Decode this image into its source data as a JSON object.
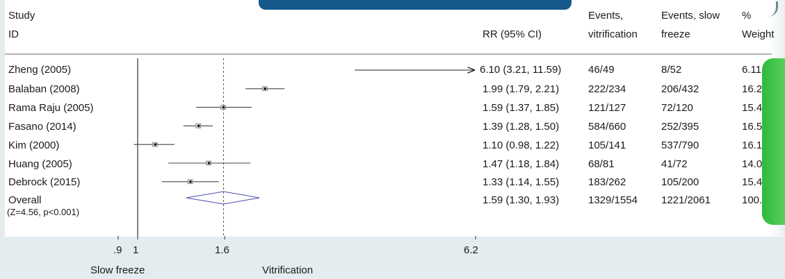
{
  "headers": {
    "study_line1": "Study",
    "study_line2": "ID",
    "rr": "RR (95% CI)",
    "ev_vit_line1": "Events,",
    "ev_vit_line2": "vitrification",
    "ev_slow_line1": "Events, slow",
    "ev_slow_line2": "freeze",
    "weight_line1": "%",
    "weight_line2": "Weight"
  },
  "studies": [
    {
      "id": "Zheng (2005)",
      "ci_text": "6.10 (3.21, 11.59)",
      "events_vit": "46/49",
      "events_slow": "8/52",
      "weight": "6.11"
    },
    {
      "id": "Balaban (2008)",
      "ci_text": "1.99 (1.79, 2.21)",
      "events_vit": "222/234",
      "events_slow": "206/432",
      "weight": "16.2"
    },
    {
      "id": "Rama Raju (2005)",
      "ci_text": "1.59 (1.37, 1.85)",
      "events_vit": "121/127",
      "events_slow": "72/120",
      "weight": "15.4"
    },
    {
      "id": "Fasano (2014)",
      "ci_text": "1.39 (1.28, 1.50)",
      "events_vit": "584/660",
      "events_slow": "252/395",
      "weight": "16.5"
    },
    {
      "id": "Kim (2000)",
      "ci_text": "1.10 (0.98, 1.22)",
      "events_vit": "105/141",
      "events_slow": "537/790",
      "weight": "16.1"
    },
    {
      "id": "Huang (2005)",
      "ci_text": "1.47 (1.18, 1.84)",
      "events_vit": "68/81",
      "events_slow": "41/72",
      "weight": "14.0"
    },
    {
      "id": "Debrock (2015)",
      "ci_text": "1.33 (1.14, 1.55)",
      "events_vit": "183/262",
      "events_slow": "105/200",
      "weight": "15.4"
    }
  ],
  "overall": {
    "id": "Overall",
    "stats": "(Z=4.56, p<0.001)",
    "ci_text": "1.59 (1.30, 1.93)",
    "events_vit": "1329/1554",
    "events_slow": "1221/2061",
    "weight": "100."
  },
  "axis": {
    "tick_labels": [
      ".9",
      "1",
      "1.6",
      "6.2"
    ],
    "left_label": "Slow freeze",
    "right_label": "Vitrification"
  },
  "chart_data": {
    "type": "forest",
    "scale": "log",
    "xlim": [
      0.9,
      6.2
    ],
    "ticks": [
      0.9,
      1,
      1.6,
      6.2
    ],
    "null_line": 1,
    "pooled_line": 1.59,
    "categories": [
      "Zheng (2005)",
      "Balaban (2008)",
      "Rama Raju (2005)",
      "Fasano (2014)",
      "Kim (2000)",
      "Huang (2005)",
      "Debrock (2015)"
    ],
    "estimates": [
      {
        "rr": 6.1,
        "lo": 3.21,
        "hi": 11.59,
        "arrow_right": true
      },
      {
        "rr": 1.99,
        "lo": 1.79,
        "hi": 2.21
      },
      {
        "rr": 1.59,
        "lo": 1.37,
        "hi": 1.85
      },
      {
        "rr": 1.39,
        "lo": 1.28,
        "hi": 1.5
      },
      {
        "rr": 1.1,
        "lo": 0.98,
        "hi": 1.22
      },
      {
        "rr": 1.47,
        "lo": 1.18,
        "hi": 1.84
      },
      {
        "rr": 1.33,
        "lo": 1.14,
        "hi": 1.55
      }
    ],
    "pooled": {
      "rr": 1.59,
      "lo": 1.3,
      "hi": 1.93
    },
    "xlabel_left": "Slow freeze",
    "xlabel_right": "Vitrification"
  },
  "colors": {
    "ink": "#1a1a1a",
    "line": "#444444",
    "diamond": "#4b4bb0",
    "banner": "#14598a",
    "band": "#e3ecee",
    "pill": "#3cc447"
  }
}
